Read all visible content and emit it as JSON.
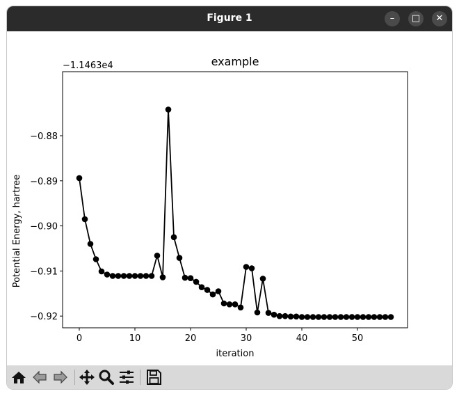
{
  "window": {
    "title": "Figure 1",
    "controls": [
      "minimize-icon",
      "maximize-icon",
      "close-icon"
    ]
  },
  "toolbar": {
    "buttons": [
      "home-icon",
      "back-icon",
      "forward-icon",
      "pan-icon",
      "zoom-icon",
      "configure-subplots-icon",
      "save-icon"
    ]
  },
  "chart_data": {
    "type": "line",
    "title": "example",
    "xlabel": "iteration",
    "ylabel": "Potential Energy, hartree",
    "offset_text": "−1.1463e4",
    "xlim": [
      -3,
      59
    ],
    "ylim": [
      -0.9226,
      -0.8658
    ],
    "xticks": [
      0,
      10,
      20,
      30,
      40,
      50
    ],
    "xtick_labels": [
      "0",
      "10",
      "20",
      "30",
      "40",
      "50"
    ],
    "yticks": [
      -0.88,
      -0.89,
      -0.9,
      -0.91,
      -0.92
    ],
    "ytick_labels": [
      "−0.88",
      "−0.89",
      "−0.90",
      "−0.91",
      "−0.92"
    ],
    "line_color": "#000000",
    "marker": "circle",
    "grid": false,
    "x": [
      0,
      1,
      2,
      3,
      4,
      5,
      6,
      7,
      8,
      9,
      10,
      11,
      12,
      13,
      14,
      15,
      16,
      17,
      18,
      19,
      20,
      21,
      22,
      23,
      24,
      25,
      26,
      27,
      28,
      29,
      30,
      31,
      32,
      33,
      34,
      35,
      36,
      37,
      38,
      39,
      40,
      41,
      42,
      43,
      44,
      45,
      46,
      47,
      48,
      49,
      50,
      51,
      52,
      53,
      54,
      55,
      56
    ],
    "y": [
      -0.8894,
      -0.8985,
      -0.904,
      -0.9074,
      -0.9101,
      -0.9108,
      -0.9111,
      -0.9111,
      -0.9111,
      -0.9111,
      -0.9111,
      -0.9111,
      -0.9111,
      -0.9111,
      -0.9066,
      -0.9114,
      -0.8742,
      -0.9025,
      -0.9071,
      -0.9115,
      -0.9116,
      -0.9124,
      -0.9136,
      -0.9142,
      -0.9152,
      -0.9145,
      -0.9172,
      -0.9174,
      -0.9174,
      -0.9181,
      -0.9091,
      -0.9094,
      -0.9192,
      -0.9117,
      -0.9193,
      -0.9197,
      -0.92,
      -0.92,
      -0.9201,
      -0.9201,
      -0.9202,
      -0.9202,
      -0.9202,
      -0.9202,
      -0.9202,
      -0.9202,
      -0.9202,
      -0.9202,
      -0.9202,
      -0.9202,
      -0.9202,
      -0.9202,
      -0.9202,
      -0.9202,
      -0.9202,
      -0.9202,
      -0.9202
    ]
  }
}
